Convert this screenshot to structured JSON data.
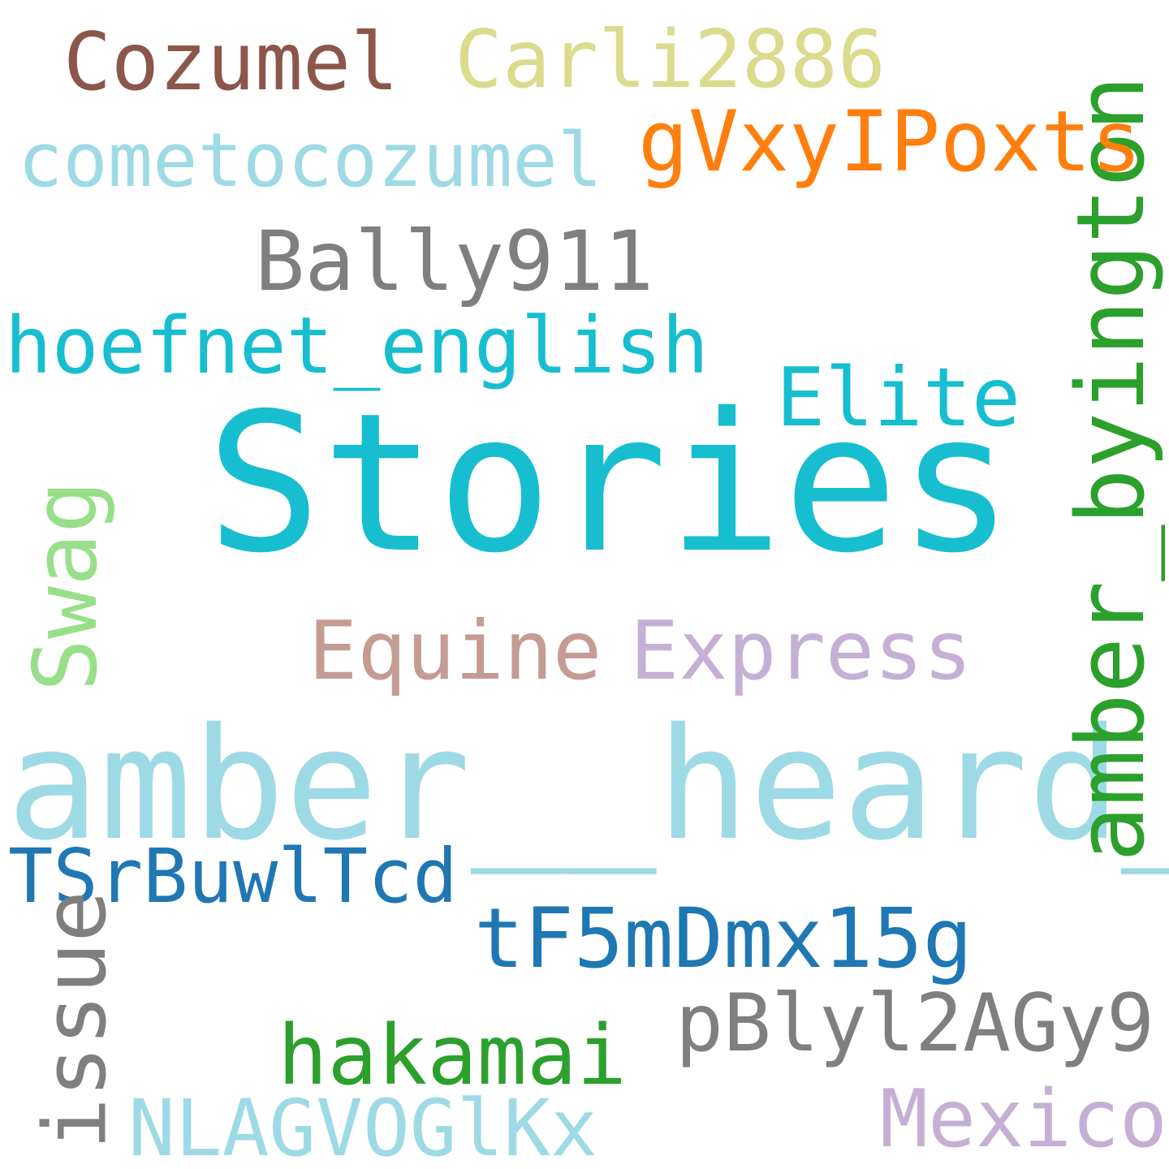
{
  "words": [
    {
      "text": "Stories",
      "color": "#17becf"
    },
    {
      "text": "amber__heard_",
      "color": "#9edae5"
    },
    {
      "text": "amber_byington",
      "color": "#2ca02c"
    },
    {
      "text": "gVxyIPoxts",
      "color": "#ff7f0e"
    },
    {
      "text": "cometocozumel",
      "color": "#9edae5"
    },
    {
      "text": "Cozumel",
      "color": "#8c564b"
    },
    {
      "text": "Carli2886",
      "color": "#dbdb8d"
    },
    {
      "text": "Bally911",
      "color": "#7f7f7f"
    },
    {
      "text": "hoefnet_english",
      "color": "#17becf"
    },
    {
      "text": "Elite",
      "color": "#17becf"
    },
    {
      "text": "Equine",
      "color": "#c49c94"
    },
    {
      "text": "Express",
      "color": "#c5b0d5"
    },
    {
      "text": "Swag",
      "color": "#98df8a"
    },
    {
      "text": "TSrBuwlTcd",
      "color": "#1f77b4"
    },
    {
      "text": "tF5mDmx15g",
      "color": "#1f77b4"
    },
    {
      "text": "issue",
      "color": "#7f7f7f"
    },
    {
      "text": "pBlyl2AGy9",
      "color": "#7f7f7f"
    },
    {
      "text": "hakamai",
      "color": "#2ca02c"
    },
    {
      "text": "NLAGVOGlKx",
      "color": "#9edae5"
    },
    {
      "text": "Mexico",
      "color": "#c5b0d5"
    }
  ]
}
